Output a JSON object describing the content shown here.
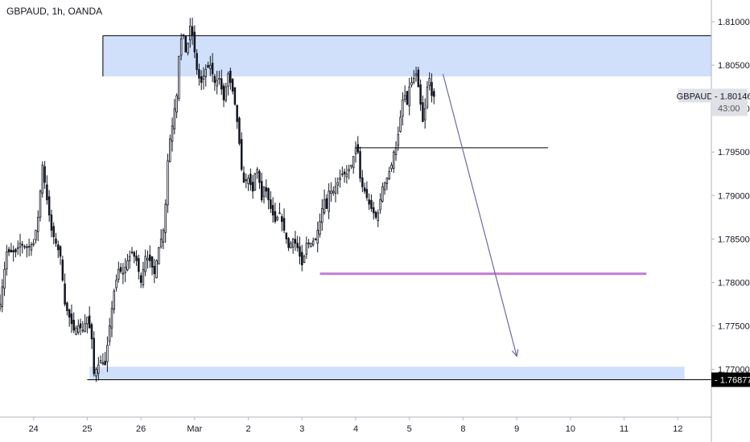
{
  "header": {
    "symbol_line": "GBPAUD, 1h, OANDA"
  },
  "chart_data": {
    "type": "candlestick",
    "symbol": "GBPAUD",
    "interval": "1h",
    "source": "OANDA",
    "y_ticks": [
      1.81,
      1.805,
      1.8,
      1.795,
      1.79,
      1.785,
      1.78,
      1.775,
      1.77
    ],
    "y_tick_labels": [
      "1.81000",
      "1.80500",
      "1.80000",
      "1.79500",
      "1.79000",
      "1.78500",
      "1.78000",
      "1.77500",
      "1.77000"
    ],
    "ylim": [
      1.7645,
      1.8125
    ],
    "x_ticks": [
      {
        "label": "24",
        "x": 0
      },
      {
        "label": "25",
        "x": 24
      },
      {
        "label": "26",
        "x": 48
      },
      {
        "label": "Mar",
        "x": 72
      },
      {
        "label": "2",
        "x": 96
      },
      {
        "label": "3",
        "x": 120
      },
      {
        "label": "4",
        "x": 144
      },
      {
        "label": "5",
        "x": 168
      },
      {
        "label": "8",
        "x": 192
      },
      {
        "label": "9",
        "x": 216
      },
      {
        "label": "10",
        "x": 240
      },
      {
        "label": "11",
        "x": 264
      },
      {
        "label": "12",
        "x": 288
      }
    ],
    "xlim": [
      -15,
      303
    ],
    "price_path": [
      [
        -15,
        1.7775
      ],
      [
        -12,
        1.7835
      ],
      [
        -8,
        1.7835
      ],
      [
        -6,
        1.7845
      ],
      [
        -3,
        1.784
      ],
      [
        0,
        1.7845
      ],
      [
        2,
        1.7875
      ],
      [
        4,
        1.7935
      ],
      [
        6,
        1.7895
      ],
      [
        8,
        1.786
      ],
      [
        10,
        1.7845
      ],
      [
        12,
        1.783
      ],
      [
        14,
        1.7775
      ],
      [
        16,
        1.776
      ],
      [
        18,
        1.7745
      ],
      [
        20,
        1.775
      ],
      [
        22,
        1.7745
      ],
      [
        24,
        1.776
      ],
      [
        26,
        1.7735
      ],
      [
        27,
        1.7695
      ],
      [
        28,
        1.77
      ],
      [
        30,
        1.771
      ],
      [
        32,
        1.7705
      ],
      [
        34,
        1.775
      ],
      [
        36,
        1.779
      ],
      [
        38,
        1.7815
      ],
      [
        40,
        1.781
      ],
      [
        42,
        1.7825
      ],
      [
        44,
        1.7835
      ],
      [
        46,
        1.7825
      ],
      [
        48,
        1.78
      ],
      [
        50,
        1.783
      ],
      [
        52,
        1.7825
      ],
      [
        54,
        1.781
      ],
      [
        56,
        1.784
      ],
      [
        58,
        1.786
      ],
      [
        59,
        1.789
      ],
      [
        60,
        1.794
      ],
      [
        61,
        1.7965
      ],
      [
        62,
        1.798
      ],
      [
        63,
        1.8
      ],
      [
        64,
        1.8015
      ],
      [
        65,
        1.806
      ],
      [
        66,
        1.808
      ],
      [
        67,
        1.8085
      ],
      [
        68,
        1.8065
      ],
      [
        69,
        1.8075
      ],
      [
        70,
        1.8095
      ],
      [
        71,
        1.8085
      ],
      [
        72,
        1.8065
      ],
      [
        73,
        1.8045
      ],
      [
        74,
        1.8035
      ],
      [
        75,
        1.803
      ],
      [
        77,
        1.8045
      ],
      [
        79,
        1.805
      ],
      [
        81,
        1.803
      ],
      [
        83,
        1.8035
      ],
      [
        85,
        1.801
      ],
      [
        87,
        1.804
      ],
      [
        89,
        1.802
      ],
      [
        90,
        1.8005
      ],
      [
        91,
        1.7985
      ],
      [
        92,
        1.796
      ],
      [
        93,
        1.793
      ],
      [
        94,
        1.7915
      ],
      [
        96,
        1.792
      ],
      [
        98,
        1.7905
      ],
      [
        99,
        1.7925
      ],
      [
        100,
        1.793
      ],
      [
        101,
        1.7915
      ],
      [
        102,
        1.7895
      ],
      [
        103,
        1.791
      ],
      [
        104,
        1.7905
      ],
      [
        106,
        1.7885
      ],
      [
        108,
        1.787
      ],
      [
        110,
        1.788
      ],
      [
        112,
        1.786
      ],
      [
        113,
        1.785
      ],
      [
        114,
        1.784
      ],
      [
        115,
        1.7845
      ],
      [
        116,
        1.785
      ],
      [
        117,
        1.7845
      ],
      [
        118,
        1.784
      ],
      [
        119,
        1.783
      ],
      [
        120,
        1.782
      ],
      [
        121,
        1.783
      ],
      [
        122,
        1.7845
      ],
      [
        124,
        1.7845
      ],
      [
        126,
        1.785
      ],
      [
        127,
        1.786
      ],
      [
        128,
        1.787
      ],
      [
        129,
        1.7885
      ],
      [
        130,
        1.7895
      ],
      [
        131,
        1.7885
      ],
      [
        132,
        1.7905
      ],
      [
        134,
        1.7905
      ],
      [
        136,
        1.7915
      ],
      [
        138,
        1.7925
      ],
      [
        140,
        1.7925
      ],
      [
        142,
        1.7935
      ],
      [
        144,
        1.7955
      ],
      [
        145,
        1.795
      ],
      [
        146,
        1.792
      ],
      [
        147,
        1.791
      ],
      [
        148,
        1.7905
      ],
      [
        150,
        1.789
      ],
      [
        152,
        1.788
      ],
      [
        153,
        1.7875
      ],
      [
        154,
        1.788
      ],
      [
        156,
        1.791
      ],
      [
        158,
        1.792
      ],
      [
        160,
        1.7935
      ],
      [
        161,
        1.795
      ],
      [
        162,
        1.7955
      ],
      [
        163,
        1.797
      ],
      [
        164,
        1.799
      ],
      [
        165,
        1.801
      ],
      [
        166,
        1.8015
      ],
      [
        167,
        1.8005
      ],
      [
        168,
        1.8025
      ],
      [
        169,
        1.803
      ],
      [
        170,
        1.8035
      ],
      [
        171,
        1.804
      ],
      [
        172,
        1.8025
      ],
      [
        173,
        1.8005
      ],
      [
        174,
        1.7985
      ],
      [
        175,
        1.8
      ],
      [
        176,
        1.8025
      ],
      [
        177,
        1.8035
      ],
      [
        178,
        1.8015
      ],
      [
        179,
        1.8014
      ]
    ],
    "last_price": {
      "symbol": "GBPAUD",
      "value": "1.80146",
      "countdown": "43:00"
    },
    "low_marker": {
      "value": "1.76877"
    },
    "drawings": {
      "upper_zone": {
        "x0": 31,
        "x1": 303,
        "y0": 1.8037,
        "y1": 1.8084,
        "fill": "#d0e0fa"
      },
      "lower_zone": {
        "x0": 25,
        "x1": 291,
        "y0": 1.7688,
        "y1": 1.7703,
        "fill": "#d0e0fa"
      },
      "upper_zone_top_line": {
        "x0": 31,
        "x1": 303,
        "y": 1.8084
      },
      "level_line": {
        "x0": 144,
        "x1": 230,
        "y": 1.7955
      },
      "support_line": {
        "x0": 128,
        "x1": 274,
        "y": 1.781,
        "color": "#c77dd6"
      },
      "low_line": {
        "x0": 24,
        "x1": 303,
        "y": 1.7688
      },
      "projection_arrow": {
        "x0": 183,
        "y0": 1.804,
        "x1": 216,
        "y1": 1.7715,
        "color": "#6e6aa8"
      }
    },
    "colors": {
      "candle": "#131722",
      "axis_text": "#131722",
      "price_badge_bg": "#dfe1e6",
      "low_badge_bg": "#000000"
    }
  }
}
